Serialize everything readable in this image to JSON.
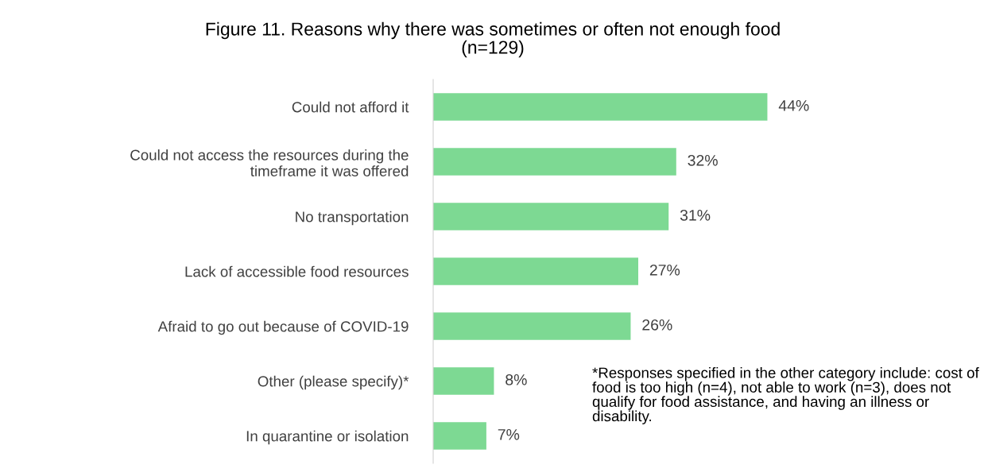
{
  "chart_data": {
    "type": "bar",
    "orientation": "horizontal",
    "title": "Figure 11. Reasons why there was sometimes or often not enough food\n(n=129)",
    "categories": [
      "Could not afford it",
      "Could not access the resources during the\ntimeframe it was offered",
      "No transportation",
      "Lack of accessible food resources",
      "Afraid to go out because of COVID-19",
      "Other (please specify)*",
      "In quarantine or isolation"
    ],
    "values": [
      44,
      32,
      31,
      27,
      26,
      8,
      7
    ],
    "value_labels": [
      "44%",
      "32%",
      "31%",
      "27%",
      "26%",
      "8%",
      "7%"
    ],
    "color": "#7dd993",
    "grid": false,
    "legend": false,
    "annotations": [
      "*Responses specified in the other category include: cost of food is too high (n=4), not able to work (n=3), does not qualify for food assistance, and having an illness or disability."
    ]
  }
}
